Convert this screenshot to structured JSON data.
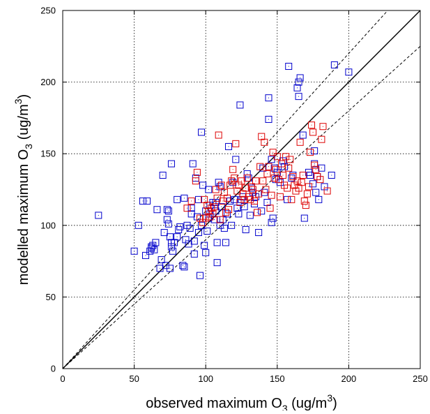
{
  "chart_data": {
    "type": "scatter",
    "title": "",
    "xlabel": {
      "prefix": "observed maximum O",
      "sub": "3",
      "mid": " (ug/m",
      "sup": "3",
      "suffix": ")"
    },
    "ylabel": {
      "prefix": "modelled maximum O",
      "sub": "3",
      "mid": " (ug/m",
      "sup": "3",
      "suffix": ")"
    },
    "xlim": [
      0,
      250
    ],
    "ylim": [
      0,
      250
    ],
    "xticks": [
      "0",
      "50",
      "100",
      "150",
      "200",
      "250"
    ],
    "yticks": [
      "0",
      "50",
      "100",
      "150",
      "200",
      "250"
    ],
    "grid": true,
    "marker": "open-square",
    "reference_lines": [
      {
        "kind": "1:1",
        "style": "solid",
        "slope": 1.0
      },
      {
        "kind": "factor",
        "style": "dashed",
        "slope": 1.1
      },
      {
        "kind": "factor",
        "style": "dashed",
        "slope": 0.9
      }
    ],
    "series": [
      {
        "color": "#0000cc",
        "points": [
          [
            25,
            107
          ],
          [
            50,
            82
          ],
          [
            53,
            100
          ],
          [
            56,
            117
          ],
          [
            58,
            79
          ],
          [
            59,
            117
          ],
          [
            61,
            82
          ],
          [
            62,
            84
          ],
          [
            62,
            85
          ],
          [
            63,
            86
          ],
          [
            64,
            83
          ],
          [
            65,
            88
          ],
          [
            66,
            111
          ],
          [
            68,
            70
          ],
          [
            69,
            76
          ],
          [
            70,
            135
          ],
          [
            71,
            95
          ],
          [
            72,
            72
          ],
          [
            73,
            104
          ],
          [
            73,
            111
          ],
          [
            74,
            110
          ],
          [
            74,
            101
          ],
          [
            75,
            92
          ],
          [
            75,
            70
          ],
          [
            76,
            88
          ],
          [
            76,
            85
          ],
          [
            76,
            143
          ],
          [
            77,
            82
          ],
          [
            78,
            88
          ],
          [
            80,
            92
          ],
          [
            80,
            118
          ],
          [
            81,
            97
          ],
          [
            82,
            99
          ],
          [
            84,
            72
          ],
          [
            85,
            71
          ],
          [
            85,
            119
          ],
          [
            86,
            90
          ],
          [
            87,
            100
          ],
          [
            88,
            87
          ],
          [
            89,
            98
          ],
          [
            90,
            112
          ],
          [
            90,
            108
          ],
          [
            91,
            143
          ],
          [
            92,
            80
          ],
          [
            92,
            89
          ],
          [
            93,
            133
          ],
          [
            94,
            106
          ],
          [
            95,
            95
          ],
          [
            95,
            118
          ],
          [
            96,
            65
          ],
          [
            97,
            165
          ],
          [
            97,
            100
          ],
          [
            98,
            128
          ],
          [
            99,
            86
          ],
          [
            100,
            81
          ],
          [
            100,
            110
          ],
          [
            101,
            96
          ],
          [
            102,
            125
          ],
          [
            102,
            105
          ],
          [
            103,
            114
          ],
          [
            103,
            108
          ],
          [
            105,
            116
          ],
          [
            106,
            104
          ],
          [
            107,
            116
          ],
          [
            107,
            110
          ],
          [
            108,
            88
          ],
          [
            108,
            74
          ],
          [
            109,
            130
          ],
          [
            110,
            127
          ],
          [
            110,
            100
          ],
          [
            111,
            113
          ],
          [
            112,
            104
          ],
          [
            113,
            98
          ],
          [
            114,
            88
          ],
          [
            115,
            108
          ],
          [
            116,
            155
          ],
          [
            117,
            117
          ],
          [
            118,
            100
          ],
          [
            119,
            130
          ],
          [
            120,
            118
          ],
          [
            121,
            146
          ],
          [
            122,
            112
          ],
          [
            123,
            108
          ],
          [
            124,
            184
          ],
          [
            125,
            118
          ],
          [
            126,
            120
          ],
          [
            127,
            113
          ],
          [
            128,
            97
          ],
          [
            129,
            136
          ],
          [
            130,
            133
          ],
          [
            131,
            107
          ],
          [
            132,
            126
          ],
          [
            133,
            123
          ],
          [
            134,
            115
          ],
          [
            135,
            120
          ],
          [
            137,
            95
          ],
          [
            139,
            110
          ],
          [
            140,
            140
          ],
          [
            141,
            123
          ],
          [
            143,
            116
          ],
          [
            144,
            174
          ],
          [
            144,
            189
          ],
          [
            146,
            146
          ],
          [
            146,
            102
          ],
          [
            147,
            105
          ],
          [
            148,
            140
          ],
          [
            149,
            132
          ],
          [
            150,
            137
          ],
          [
            152,
            130
          ],
          [
            154,
            145
          ],
          [
            155,
            141
          ],
          [
            157,
            118
          ],
          [
            158,
            211
          ],
          [
            160,
            133
          ],
          [
            161,
            135
          ],
          [
            164,
            196
          ],
          [
            165,
            200
          ],
          [
            165,
            190
          ],
          [
            166,
            203
          ],
          [
            168,
            163
          ],
          [
            169,
            105
          ],
          [
            172,
            137
          ],
          [
            173,
            135
          ],
          [
            175,
            129
          ],
          [
            176,
            152
          ],
          [
            176,
            143
          ],
          [
            177,
            123
          ],
          [
            178,
            134
          ],
          [
            179,
            118
          ],
          [
            181,
            140
          ],
          [
            183,
            127
          ],
          [
            188,
            135
          ],
          [
            190,
            212
          ],
          [
            200,
            207
          ]
        ]
      },
      {
        "color": "#dd0000",
        "points": [
          [
            87,
            112
          ],
          [
            90,
            117
          ],
          [
            93,
            131
          ],
          [
            94,
            137
          ],
          [
            96,
            105
          ],
          [
            98,
            102
          ],
          [
            99,
            118
          ],
          [
            100,
            105
          ],
          [
            101,
            114
          ],
          [
            102,
            110
          ],
          [
            103,
            106
          ],
          [
            104,
            112
          ],
          [
            105,
            108
          ],
          [
            106,
            113
          ],
          [
            107,
            125
          ],
          [
            108,
            119
          ],
          [
            109,
            163
          ],
          [
            110,
            104
          ],
          [
            111,
            128
          ],
          [
            112,
            117
          ],
          [
            113,
            123
          ],
          [
            114,
            109
          ],
          [
            115,
            119
          ],
          [
            116,
            111
          ],
          [
            117,
            128
          ],
          [
            118,
            131
          ],
          [
            119,
            139
          ],
          [
            120,
            133
          ],
          [
            121,
            157
          ],
          [
            122,
            124
          ],
          [
            123,
            128
          ],
          [
            124,
            116
          ],
          [
            125,
            131
          ],
          [
            126,
            122
          ],
          [
            127,
            118
          ],
          [
            128,
            126
          ],
          [
            129,
            133
          ],
          [
            130,
            120
          ],
          [
            131,
            118
          ],
          [
            132,
            127
          ],
          [
            133,
            125
          ],
          [
            134,
            117
          ],
          [
            135,
            131
          ],
          [
            136,
            109
          ],
          [
            137,
            122
          ],
          [
            138,
            141
          ],
          [
            139,
            162
          ],
          [
            140,
            131
          ],
          [
            141,
            158
          ],
          [
            142,
            125
          ],
          [
            143,
            136
          ],
          [
            144,
            141
          ],
          [
            145,
            112
          ],
          [
            146,
            121
          ],
          [
            147,
            151
          ],
          [
            148,
            133
          ],
          [
            149,
            139
          ],
          [
            150,
            148
          ],
          [
            151,
            132
          ],
          [
            152,
            120
          ],
          [
            153,
            143
          ],
          [
            154,
            135
          ],
          [
            155,
            128
          ],
          [
            156,
            148
          ],
          [
            157,
            126
          ],
          [
            158,
            140
          ],
          [
            159,
            146
          ],
          [
            160,
            118
          ],
          [
            161,
            134
          ],
          [
            162,
            128
          ],
          [
            163,
            124
          ],
          [
            164,
            131
          ],
          [
            165,
            126
          ],
          [
            166,
            158
          ],
          [
            167,
            130
          ],
          [
            168,
            135
          ],
          [
            169,
            117
          ],
          [
            170,
            114
          ],
          [
            171,
            122
          ],
          [
            172,
            127
          ],
          [
            173,
            151
          ],
          [
            174,
            170
          ],
          [
            175,
            165
          ],
          [
            176,
            142
          ],
          [
            177,
            139
          ],
          [
            178,
            134
          ],
          [
            180,
            132
          ],
          [
            181,
            160
          ],
          [
            182,
            169
          ],
          [
            185,
            124
          ]
        ]
      }
    ]
  }
}
